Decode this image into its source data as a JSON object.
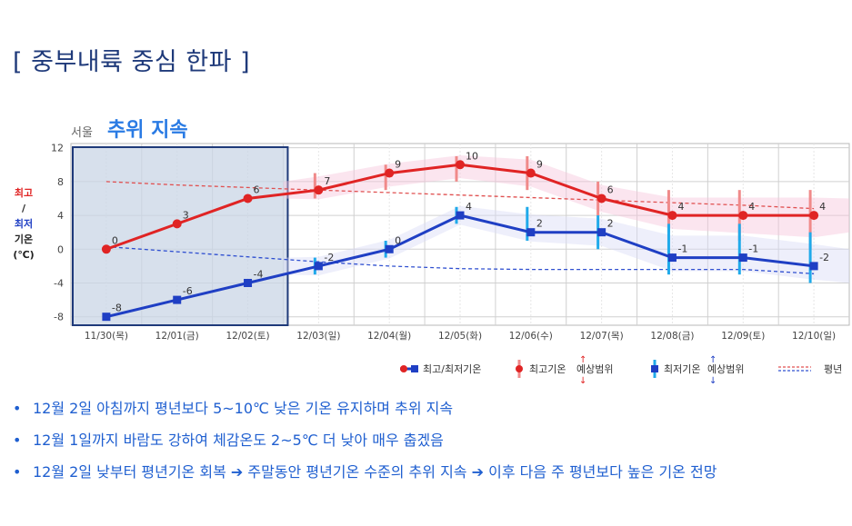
{
  "slide": {
    "title": "[ 중부내륙 중심 한파 ]",
    "bullets": [
      "12월 2일 아침까지 평년보다 5~10℃ 낮은 기온 유지하며 추위 지속",
      "12월 1일까지 바람도 강하여 체감온도 2~5℃ 더 낮아 매우 춥겠음",
      "12월 2일 낮부터 평년기온 회복 ➔ 주말동안 평년기온 수준의 추위 지속 ➔ 이후 다음 주 평년보다 높은 기온 전망"
    ]
  },
  "ylabel": {
    "line1": "최고",
    "line2": "/",
    "line3": "최저",
    "line4": "기온",
    "line5": "(℃)"
  },
  "colors": {
    "high": "#e02424",
    "low": "#1f3fc4",
    "text_blue": "#1f5fd0",
    "title": "#1f3a7a",
    "highlight": "#2a7be4",
    "shade": "#c9d6e6"
  },
  "chart_data": {
    "type": "line",
    "location": "서울",
    "title": "추위 지속",
    "categories": [
      "11/30(목)",
      "12/01(금)",
      "12/02(토)",
      "12/03(일)",
      "12/04(월)",
      "12/05(화)",
      "12/06(수)",
      "12/07(목)",
      "12/08(금)",
      "12/09(토)",
      "12/10(일)"
    ],
    "ylim": [
      -9,
      12.5
    ],
    "yticks": [
      12,
      8,
      4,
      0,
      -4,
      -8
    ],
    "grid": true,
    "legend_position": "bottom-right",
    "legend": {
      "main": "최고/최저기온",
      "high_range": "최고기온",
      "low_range": "최저기온",
      "range_suffix": "예상범위",
      "normal": "평년"
    },
    "series": [
      {
        "name": "최고기온",
        "values": [
          0,
          3,
          6,
          7,
          9,
          10,
          9,
          6,
          4,
          4,
          4
        ],
        "range_low": [
          null,
          null,
          null,
          6,
          7,
          8,
          7,
          4,
          2,
          1,
          0
        ],
        "range_high": [
          null,
          null,
          null,
          9,
          10,
          11,
          11,
          8,
          7,
          7,
          7
        ]
      },
      {
        "name": "최저기온",
        "values": [
          -8,
          -6,
          -4,
          -2,
          0,
          4,
          2,
          2,
          -1,
          -1,
          -2
        ],
        "range_low": [
          null,
          null,
          null,
          -3,
          -1,
          3,
          1,
          0,
          -3,
          -3,
          -4
        ],
        "range_high": [
          null,
          null,
          null,
          -1,
          1,
          5,
          5,
          4,
          3,
          3,
          2
        ]
      },
      {
        "name": "평년 최고",
        "values": [
          8.0,
          7.6,
          7.3,
          7.0,
          6.7,
          6.4,
          6.1,
          5.8,
          5.5,
          5.2,
          4.8
        ]
      },
      {
        "name": "평년 최저",
        "values": [
          0.3,
          -0.3,
          -0.9,
          -1.5,
          -2.0,
          -2.3,
          -2.4,
          -2.4,
          -2.4,
          -2.4,
          -2.9
        ]
      }
    ],
    "highlight_range": [
      "11/30(목)",
      "12/02(토)"
    ]
  }
}
